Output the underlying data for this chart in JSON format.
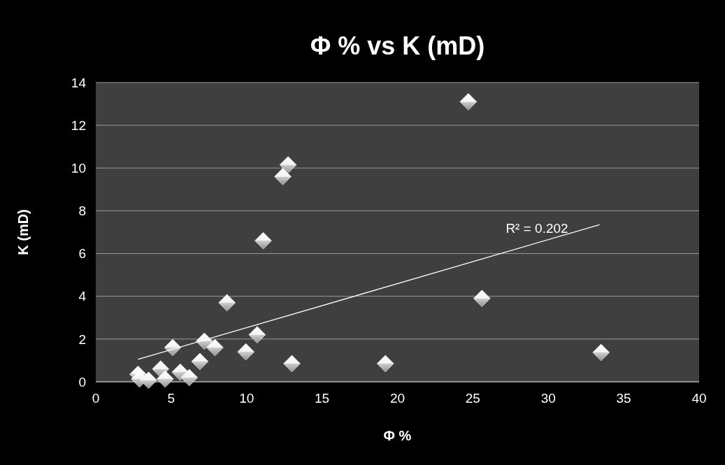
{
  "chart_data": {
    "type": "scatter",
    "title": "Φ % vs K (mD)",
    "xlabel": "Φ %",
    "ylabel": "K (mD)",
    "xlim": [
      0,
      40
    ],
    "xticks": [
      0,
      5,
      10,
      15,
      20,
      25,
      30,
      35,
      40
    ],
    "ylim": [
      0,
      14
    ],
    "yticks": [
      0,
      2,
      4,
      6,
      8,
      10,
      12,
      14
    ],
    "grid": "y",
    "series": [
      {
        "color": "#ffffff",
        "marker": "diamond",
        "x": [
          2.8,
          2.9,
          3.5,
          4.3,
          4.6,
          5.1,
          5.6,
          6.2,
          6.9,
          7.2,
          7.9,
          8.7,
          9.95,
          10.7,
          11.1,
          12.4,
          12.75,
          13.0,
          19.2,
          24.7,
          25.6,
          33.5
        ],
        "values": [
          0.35,
          0.13,
          0.07,
          0.6,
          0.13,
          1.6,
          0.45,
          0.2,
          0.95,
          1.9,
          1.6,
          3.7,
          1.4,
          2.2,
          6.6,
          9.6,
          10.15,
          0.85,
          0.85,
          13.1,
          3.9,
          1.37
        ]
      },
      {
        "type": "line",
        "color": "#ffffff",
        "marker": "none",
        "x": [
          2.8,
          33.4
        ],
        "values": [
          1.05,
          7.35
        ]
      }
    ],
    "annotations": [
      "R² = 0.202"
    ]
  }
}
